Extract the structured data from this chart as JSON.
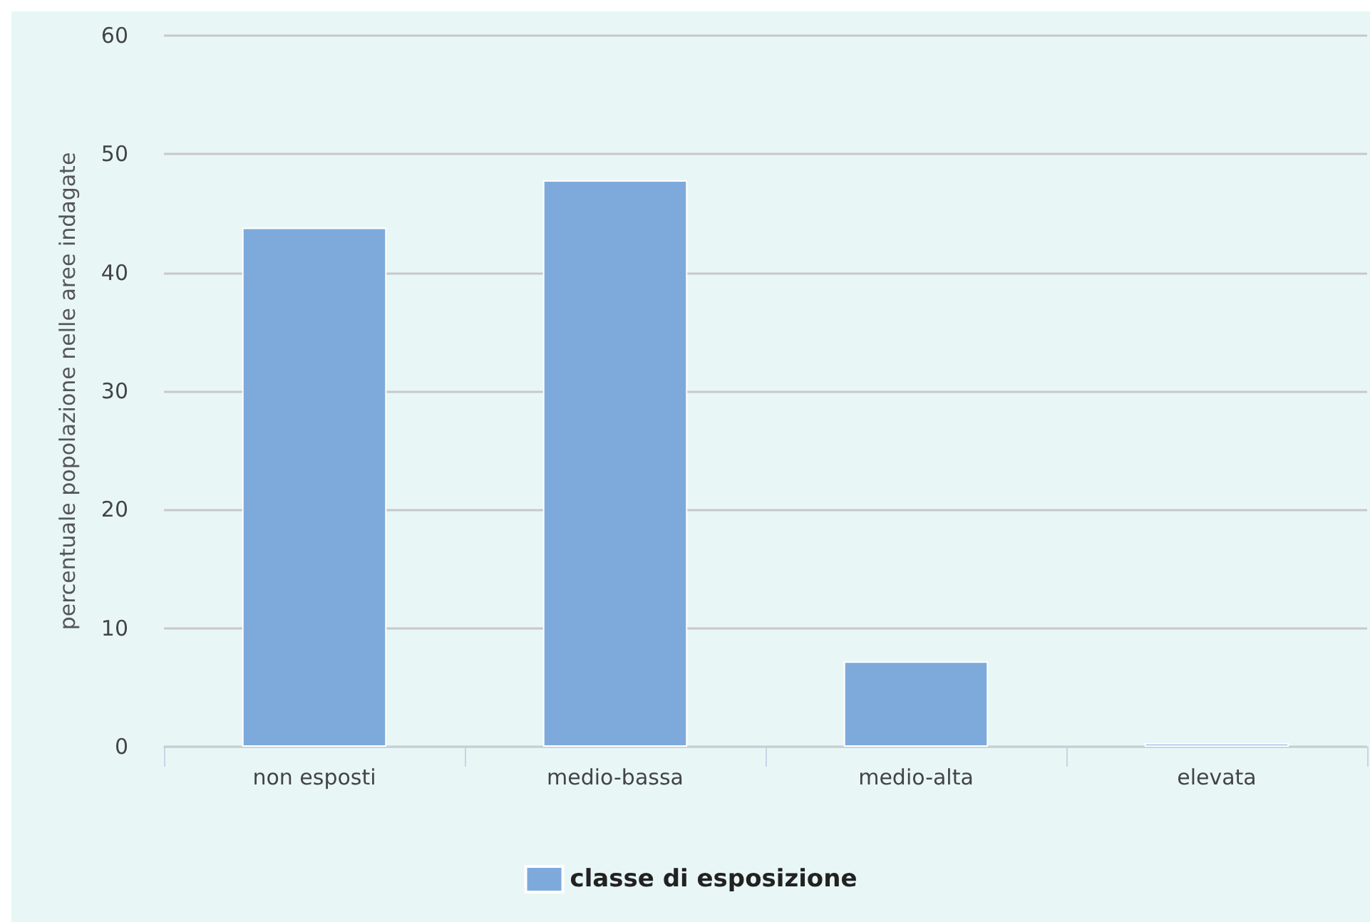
{
  "chart_data": {
    "type": "bar",
    "ylabel": "percentuale popolazione nelle aree indagate",
    "categories": [
      "non esposti",
      "medio-bassa",
      "medio-alta",
      "elevata"
    ],
    "series": [
      {
        "name": "classe di esposizione",
        "color": "#7eaadb",
        "values": [
          43.8,
          47.8,
          7.2,
          0.3
        ]
      }
    ],
    "ylim": [
      0,
      60
    ],
    "yticks": [
      0,
      10,
      20,
      30,
      40,
      50,
      60
    ],
    "grid": "y",
    "legend": "bottom"
  }
}
